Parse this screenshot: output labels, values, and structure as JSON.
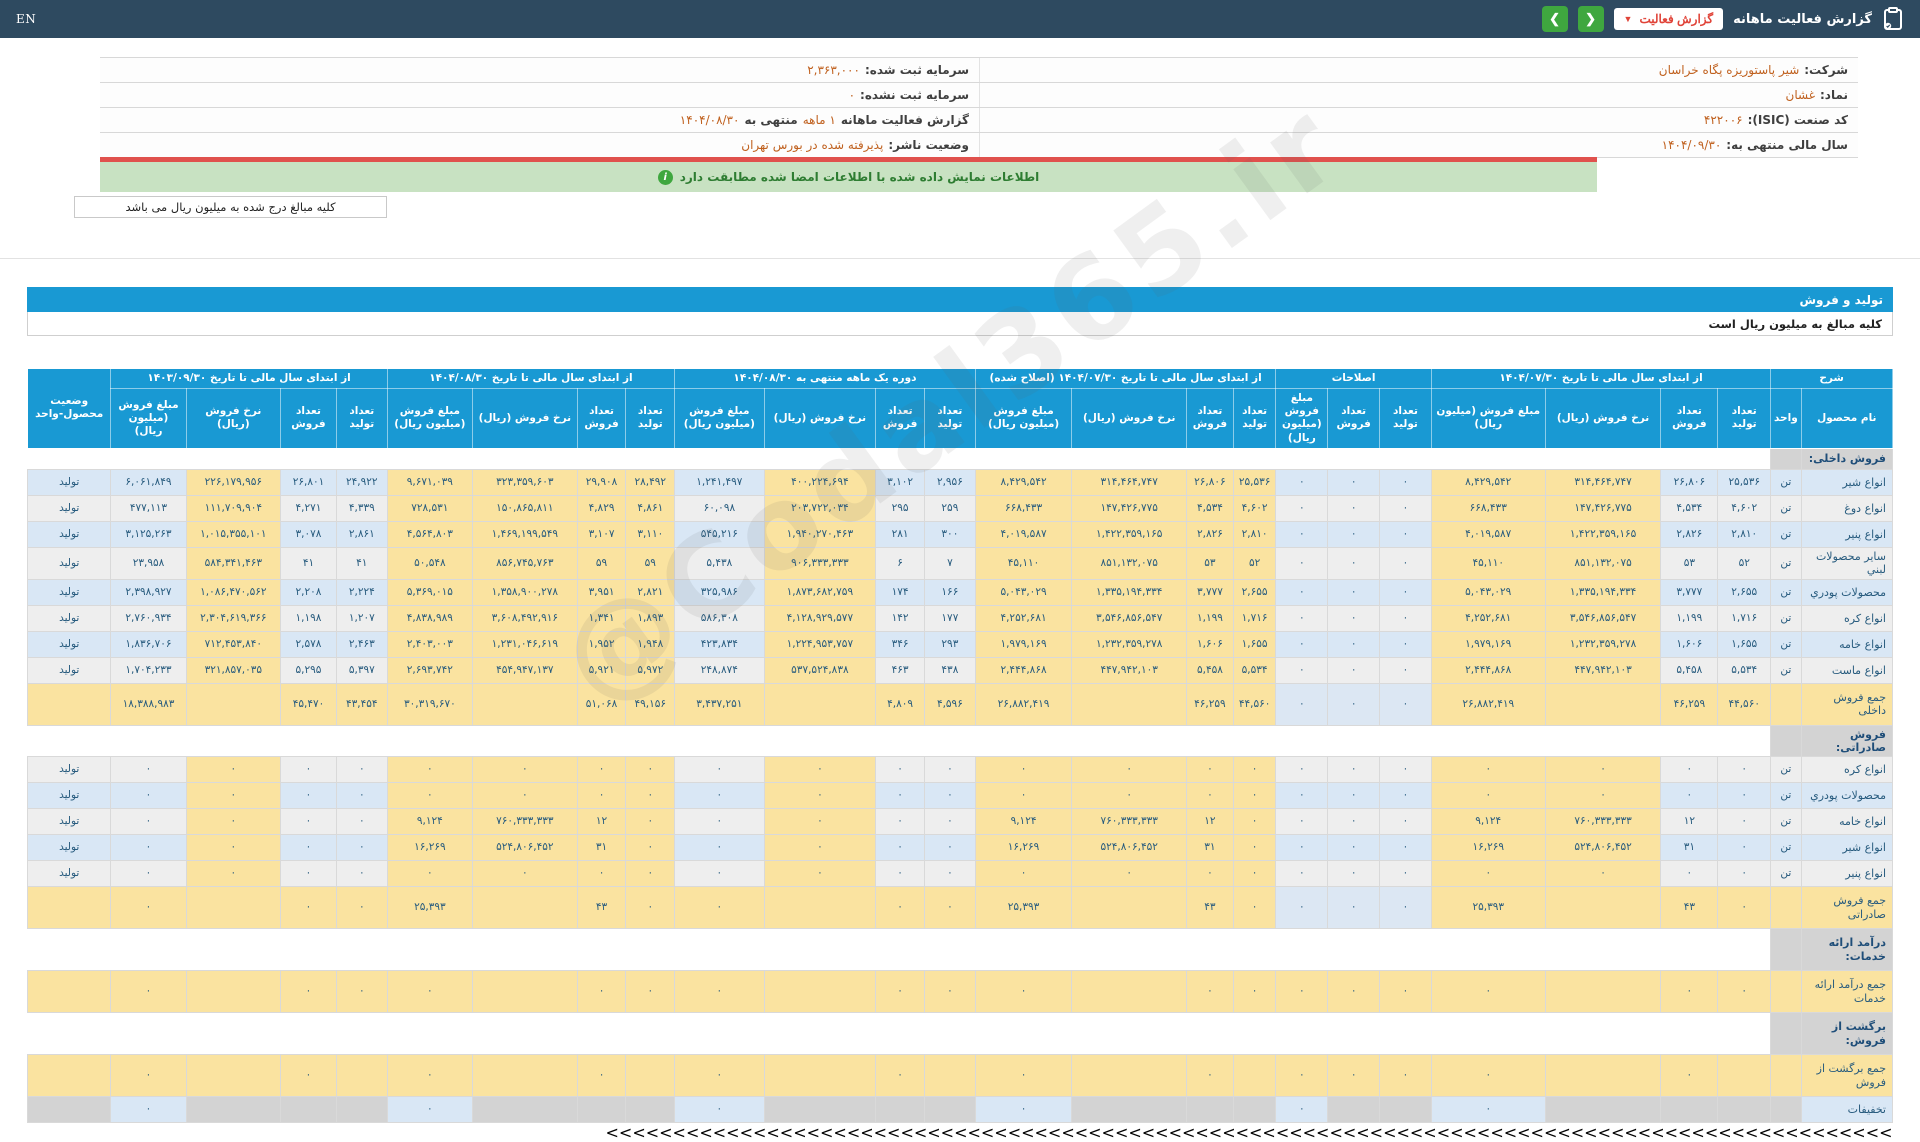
{
  "topbar": {
    "en": "EN",
    "title": "گزارش فعالیت ماهانه",
    "dropdown_label": "گزارش فعالیت",
    "icons": [
      "clipboard-icon",
      "chevron-down-icon",
      "chevron-right-icon",
      "chevron-left-icon"
    ]
  },
  "info": {
    "rows": [
      {
        "right_label": "شرکت:",
        "right_value": "شیر پاستوریزه پگاه خراسان",
        "left_parts": [
          {
            "t": "l",
            "v": "سرمایه ثبت شده:"
          },
          {
            "t": "v",
            "v": "۲,۳۶۳,۰۰۰"
          }
        ]
      },
      {
        "right_label": "نماد:",
        "right_value": "غشان",
        "left_parts": [
          {
            "t": "l",
            "v": "سرمایه ثبت نشده:"
          },
          {
            "t": "v",
            "v": "۰"
          }
        ]
      },
      {
        "right_label": "کد صنعت (ISIC):",
        "right_value": "۴۲۲۰۰۶",
        "left_parts": [
          {
            "t": "l",
            "v": "گزارش فعالیت ماهانه"
          },
          {
            "t": "v",
            "v": "۱ ماهه"
          },
          {
            "t": "l",
            "v": "منتهی به"
          },
          {
            "t": "v",
            "v": "۱۴۰۴/۰۸/۳۰"
          }
        ]
      },
      {
        "right_label": "سال مالی منتهی به:",
        "right_value": "۱۴۰۴/۰۹/۳۰",
        "left_parts": [
          {
            "t": "l",
            "v": "وضعیت ناشر:"
          },
          {
            "t": "v",
            "v": "پذیرفته شده در بورس تهران"
          }
        ]
      }
    ]
  },
  "notice": "اطلاعات نمایش داده شده با اطلاعات امضا شده مطابقت دارد",
  "units_note": "کلیه مبالغ درج شده به میلیون ریال می باشد",
  "section_bar": "تولید و فروش",
  "table_note": "کلیه مبالغ به میلیون ریال است",
  "watermark": "@Codal365.ir",
  "colors": {
    "accent_blue": "#1999d3",
    "highlight_yellow": "#fae3a0",
    "row_blue": "#d9e7f5",
    "row_gray": "#eeeeee",
    "section_gray": "#d3d3d3",
    "topbar": "#2e4a60",
    "green_button": "#3fa73f",
    "red": "#e04338",
    "notice_green": "#c8e2c2",
    "value_orange": "#c0611f"
  },
  "table": {
    "desc_header": "شرح",
    "name_header": "نام محصول",
    "unit_header": "واحد",
    "status_header": "وضعیت محصول-واحد",
    "groups": [
      {
        "label": "از ابتدای سال مالی تا تاریخ ۱۴۰۴/۰۷/۳۰",
        "cols": [
          "تعداد تولید",
          "تعداد فروش",
          "نرخ فروش (ریال)",
          "مبلغ فروش (میلیون ریال)"
        ]
      },
      {
        "label": "اصلاحات",
        "cols": [
          "تعداد تولید",
          "تعداد فروش",
          "مبلغ فروش (میلیون ریال)"
        ]
      },
      {
        "label": "از ابتدای سال مالی تا تاریخ ۱۴۰۴/۰۷/۳۰ (اصلاح شده)",
        "cols": [
          "تعداد تولید",
          "تعداد فروش",
          "نرخ فروش (ریال)",
          "مبلغ فروش (میلیون ریال)"
        ]
      },
      {
        "label": "دوره یک ماهه منتهی به ۱۴۰۴/۰۸/۳۰",
        "cols": [
          "تعداد تولید",
          "تعداد فروش",
          "نرخ فروش (ریال)",
          "مبلغ فروش (میلیون ریال)"
        ]
      },
      {
        "label": "از ابتدای سال مالی تا تاریخ ۱۴۰۴/۰۸/۳۰",
        "cols": [
          "تعداد تولید",
          "تعداد فروش",
          "نرخ فروش (ریال)",
          "مبلغ فروش (میلیون ریال)"
        ]
      },
      {
        "label": "از ابتدای سال مالی تا تاریخ ۱۴۰۳/۰۹/۳۰",
        "cols": [
          "تعداد تولید",
          "تعداد فروش",
          "نرخ فروش (ریال)",
          "مبلغ فروش (میلیون ریال)"
        ]
      }
    ],
    "rows": [
      {
        "type": "section",
        "name": "فروش داخلی:"
      },
      {
        "type": "product",
        "name": "انواع شیر",
        "unit": "تن",
        "status": "تولید",
        "tint": "blue",
        "cells": [
          "۲۵,۵۳۶",
          "۲۶,۸۰۶",
          "۳۱۴,۴۶۴,۷۴۷",
          "۸,۴۲۹,۵۴۲",
          "۰",
          "۰",
          "۰",
          "۲۵,۵۳۶",
          "۲۶,۸۰۶",
          "۳۱۴,۴۶۴,۷۴۷",
          "۸,۴۲۹,۵۴۲",
          "۲,۹۵۶",
          "۳,۱۰۲",
          "۴۰۰,۲۲۴,۶۹۴",
          "۱,۲۴۱,۴۹۷",
          "۲۸,۴۹۲",
          "۲۹,۹۰۸",
          "۳۲۳,۳۵۹,۶۰۳",
          "۹,۶۷۱,۰۳۹",
          "۲۴,۹۲۲",
          "۲۶,۸۰۱",
          "۲۲۶,۱۷۹,۹۵۶",
          "۶,۰۶۱,۸۴۹"
        ]
      },
      {
        "type": "product",
        "name": "انواع دوغ",
        "unit": "تن",
        "status": "تولید",
        "tint": "gray",
        "cells": [
          "۴,۶۰۲",
          "۴,۵۳۴",
          "۱۴۷,۴۲۶,۷۷۵",
          "۶۶۸,۴۳۳",
          "۰",
          "۰",
          "۰",
          "۴,۶۰۲",
          "۴,۵۳۴",
          "۱۴۷,۴۲۶,۷۷۵",
          "۶۶۸,۴۳۳",
          "۲۵۹",
          "۲۹۵",
          "۲۰۳,۷۲۲,۰۳۴",
          "۶۰,۰۹۸",
          "۴,۸۶۱",
          "۴,۸۲۹",
          "۱۵۰,۸۶۵,۸۱۱",
          "۷۲۸,۵۳۱",
          "۴,۳۳۹",
          "۴,۲۷۱",
          "۱۱۱,۷۰۹,۹۰۴",
          "۴۷۷,۱۱۳"
        ]
      },
      {
        "type": "product",
        "name": "انواع پنیر",
        "unit": "تن",
        "status": "تولید",
        "tint": "blue",
        "cells": [
          "۲,۸۱۰",
          "۲,۸۲۶",
          "۱,۴۲۲,۳۵۹,۱۶۵",
          "۴,۰۱۹,۵۸۷",
          "۰",
          "۰",
          "۰",
          "۲,۸۱۰",
          "۲,۸۲۶",
          "۱,۴۲۲,۳۵۹,۱۶۵",
          "۴,۰۱۹,۵۸۷",
          "۳۰۰",
          "۲۸۱",
          "۱,۹۴۰,۲۷۰,۴۶۳",
          "۵۴۵,۲۱۶",
          "۳,۱۱۰",
          "۳,۱۰۷",
          "۱,۴۶۹,۱۹۹,۵۴۹",
          "۴,۵۶۴,۸۰۳",
          "۲,۸۶۱",
          "۳,۰۷۸",
          "۱,۰۱۵,۳۵۵,۱۰۱",
          "۳,۱۲۵,۲۶۳"
        ]
      },
      {
        "type": "product",
        "name": "سایر محصولات لبني",
        "unit": "تن",
        "status": "تولید",
        "tint": "gray",
        "tall": true,
        "cells": [
          "۵۲",
          "۵۳",
          "۸۵۱,۱۳۲,۰۷۵",
          "۴۵,۱۱۰",
          "۰",
          "۰",
          "۰",
          "۵۲",
          "۵۳",
          "۸۵۱,۱۳۲,۰۷۵",
          "۴۵,۱۱۰",
          "۷",
          "۶",
          "۹۰۶,۳۳۳,۳۳۳",
          "۵,۴۳۸",
          "۵۹",
          "۵۹",
          "۸۵۶,۷۴۵,۷۶۳",
          "۵۰,۵۴۸",
          "۴۱",
          "۴۱",
          "۵۸۴,۳۴۱,۴۶۳",
          "۲۳,۹۵۸"
        ]
      },
      {
        "type": "product",
        "name": "محصولات پودري",
        "unit": "تن",
        "status": "تولید",
        "tint": "blue",
        "cells": [
          "۲,۶۵۵",
          "۳,۷۷۷",
          "۱,۳۳۵,۱۹۴,۳۳۴",
          "۵,۰۴۳,۰۲۹",
          "۰",
          "۰",
          "۰",
          "۲,۶۵۵",
          "۳,۷۷۷",
          "۱,۳۳۵,۱۹۴,۳۳۴",
          "۵,۰۴۳,۰۲۹",
          "۱۶۶",
          "۱۷۴",
          "۱,۸۷۳,۶۸۲,۷۵۹",
          "۳۲۵,۹۸۶",
          "۲,۸۲۱",
          "۳,۹۵۱",
          "۱,۳۵۸,۹۰۰,۲۷۸",
          "۵,۳۶۹,۰۱۵",
          "۲,۲۲۴",
          "۲,۲۰۸",
          "۱,۰۸۶,۴۷۰,۵۶۲",
          "۲,۳۹۸,۹۲۷"
        ]
      },
      {
        "type": "product",
        "name": "انواع کره",
        "unit": "تن",
        "status": "تولید",
        "tint": "gray",
        "cells": [
          "۱,۷۱۶",
          "۱,۱۹۹",
          "۳,۵۴۶,۸۵۶,۵۴۷",
          "۴,۲۵۲,۶۸۱",
          "۰",
          "۰",
          "۰",
          "۱,۷۱۶",
          "۱,۱۹۹",
          "۳,۵۴۶,۸۵۶,۵۴۷",
          "۴,۲۵۲,۶۸۱",
          "۱۷۷",
          "۱۴۲",
          "۴,۱۲۸,۹۲۹,۵۷۷",
          "۵۸۶,۳۰۸",
          "۱,۸۹۳",
          "۱,۳۴۱",
          "۳,۶۰۸,۴۹۲,۹۱۶",
          "۴,۸۳۸,۹۸۹",
          "۱,۲۰۷",
          "۱,۱۹۸",
          "۲,۳۰۴,۶۱۹,۳۶۶",
          "۲,۷۶۰,۹۳۴"
        ]
      },
      {
        "type": "product",
        "name": "انواع خامه",
        "unit": "تن",
        "status": "تولید",
        "tint": "blue",
        "cells": [
          "۱,۶۵۵",
          "۱,۶۰۶",
          "۱,۲۳۲,۳۵۹,۲۷۸",
          "۱,۹۷۹,۱۶۹",
          "۰",
          "۰",
          "۰",
          "۱,۶۵۵",
          "۱,۶۰۶",
          "۱,۲۳۲,۳۵۹,۲۷۸",
          "۱,۹۷۹,۱۶۹",
          "۲۹۳",
          "۳۴۶",
          "۱,۲۲۴,۹۵۳,۷۵۷",
          "۴۲۳,۸۳۴",
          "۱,۹۴۸",
          "۱,۹۵۲",
          "۱,۲۳۱,۰۴۶,۶۱۹",
          "۲,۴۰۳,۰۰۳",
          "۲,۴۶۳",
          "۲,۵۷۸",
          "۷۱۲,۴۵۳,۸۴۰",
          "۱,۸۳۶,۷۰۶"
        ]
      },
      {
        "type": "product",
        "name": "انواع ماست",
        "unit": "تن",
        "status": "تولید",
        "tint": "gray",
        "cells": [
          "۵,۵۳۴",
          "۵,۴۵۸",
          "۴۴۷,۹۴۲,۱۰۳",
          "۲,۴۴۴,۸۶۸",
          "۰",
          "۰",
          "۰",
          "۵,۵۳۴",
          "۵,۴۵۸",
          "۴۴۷,۹۴۲,۱۰۳",
          "۲,۴۴۴,۸۶۸",
          "۴۳۸",
          "۴۶۳",
          "۵۳۷,۵۲۴,۸۳۸",
          "۲۴۸,۸۷۴",
          "۵,۹۷۲",
          "۵,۹۲۱",
          "۴۵۴,۹۴۷,۱۳۷",
          "۲,۶۹۳,۷۴۲",
          "۵,۳۹۷",
          "۵,۲۹۵",
          "۳۲۱,۸۵۷,۰۳۵",
          "۱,۷۰۴,۲۳۳"
        ]
      },
      {
        "type": "total",
        "name": "جمع فروش داخلی",
        "unit": "",
        "status": "",
        "ed_blue": true,
        "cells": [
          "۴۴,۵۶۰",
          "۴۶,۲۵۹",
          "",
          "۲۶,۸۸۲,۴۱۹",
          "۰",
          "۰",
          "۰",
          "۴۴,۵۶۰",
          "۴۶,۲۵۹",
          "",
          "۲۶,۸۸۲,۴۱۹",
          "۴,۵۹۶",
          "۴,۸۰۹",
          "",
          "۳,۴۳۷,۲۵۱",
          "۴۹,۱۵۶",
          "۵۱,۰۶۸",
          "",
          "۳۰,۳۱۹,۶۷۰",
          "۴۳,۴۵۴",
          "۴۵,۴۷۰",
          "",
          "۱۸,۳۸۸,۹۸۳"
        ]
      },
      {
        "type": "section",
        "name": "فروش صادراتی:"
      },
      {
        "type": "product",
        "name": "انواع کره",
        "unit": "تن",
        "status": "تولید",
        "tint": "gray",
        "cells": [
          "۰",
          "۰",
          "۰",
          "۰",
          "۰",
          "۰",
          "۰",
          "۰",
          "۰",
          "۰",
          "۰",
          "۰",
          "۰",
          "۰",
          "۰",
          "۰",
          "۰",
          "۰",
          "۰",
          "۰",
          "۰",
          "۰",
          "۰"
        ]
      },
      {
        "type": "product",
        "name": "محصولات پودري",
        "unit": "تن",
        "status": "تولید",
        "tint": "blue",
        "cells": [
          "۰",
          "۰",
          "۰",
          "۰",
          "۰",
          "۰",
          "۰",
          "۰",
          "۰",
          "۰",
          "۰",
          "۰",
          "۰",
          "۰",
          "۰",
          "۰",
          "۰",
          "۰",
          "۰",
          "۰",
          "۰",
          "۰",
          "۰"
        ]
      },
      {
        "type": "product",
        "name": "انواع خامه",
        "unit": "تن",
        "status": "تولید",
        "tint": "gray",
        "cells": [
          "۰",
          "۱۲",
          "۷۶۰,۳۳۳,۳۳۳",
          "۹,۱۲۴",
          "۰",
          "۰",
          "۰",
          "۰",
          "۱۲",
          "۷۶۰,۳۳۳,۳۳۳",
          "۹,۱۲۴",
          "۰",
          "۰",
          "۰",
          "۰",
          "۰",
          "۱۲",
          "۷۶۰,۳۳۳,۳۳۳",
          "۹,۱۲۴",
          "۰",
          "۰",
          "۰",
          "۰"
        ]
      },
      {
        "type": "product",
        "name": "انواع شیر",
        "unit": "تن",
        "status": "تولید",
        "tint": "blue",
        "cells": [
          "۰",
          "۳۱",
          "۵۲۴,۸۰۶,۴۵۲",
          "۱۶,۲۶۹",
          "۰",
          "۰",
          "۰",
          "۰",
          "۳۱",
          "۵۲۴,۸۰۶,۴۵۲",
          "۱۶,۲۶۹",
          "۰",
          "۰",
          "۰",
          "۰",
          "۰",
          "۳۱",
          "۵۲۴,۸۰۶,۴۵۲",
          "۱۶,۲۶۹",
          "۰",
          "۰",
          "۰",
          "۰"
        ]
      },
      {
        "type": "product",
        "name": "انواع پنیر",
        "unit": "تن",
        "status": "تولید",
        "tint": "gray",
        "cells": [
          "۰",
          "۰",
          "۰",
          "۰",
          "۰",
          "۰",
          "۰",
          "۰",
          "۰",
          "۰",
          "۰",
          "۰",
          "۰",
          "۰",
          "۰",
          "۰",
          "۰",
          "۰",
          "۰",
          "۰",
          "۰",
          "۰",
          "۰"
        ]
      },
      {
        "type": "total",
        "name": "جمع فروش صادراتی",
        "unit": "",
        "status": "",
        "ed_blue": true,
        "cells": [
          "۰",
          "۴۳",
          "",
          "۲۵,۳۹۳",
          "۰",
          "۰",
          "۰",
          "۰",
          "۴۳",
          "",
          "۲۵,۳۹۳",
          "۰",
          "۰",
          "",
          "۰",
          "۰",
          "۴۳",
          "",
          "۲۵,۳۹۳",
          "۰",
          "۰",
          "",
          "۰"
        ]
      },
      {
        "type": "section",
        "name": "درآمد ارائه خدمات:",
        "tall": true
      },
      {
        "type": "total",
        "name": "جمع درآمد ارائه خدمات",
        "unit": "",
        "status": "",
        "ed_blue": false,
        "cells": [
          "۰",
          "۰",
          "",
          "۰",
          "۰",
          "۰",
          "۰",
          "۰",
          "۰",
          "",
          "۰",
          "۰",
          "۰",
          "",
          "۰",
          "۰",
          "۰",
          "",
          "۰",
          "۰",
          "۰",
          "",
          "۰"
        ]
      },
      {
        "type": "section",
        "name": "برگشت از فروش:",
        "tall": true
      },
      {
        "type": "total",
        "name": "جمع برگشت از فروش",
        "unit": "",
        "status": "",
        "ed_blue": false,
        "cells": [
          "",
          "۰",
          "",
          "۰",
          "۰",
          "۰",
          "۰",
          "",
          "۰",
          "",
          "۰",
          "",
          "۰",
          "",
          "۰",
          "",
          "۰",
          "",
          "۰",
          "",
          "۰",
          "",
          "۰"
        ]
      },
      {
        "type": "discount",
        "name": "تخفیفات",
        "unit": "",
        "status": "",
        "cells": [
          "",
          "",
          "",
          "۰",
          "",
          "",
          "۰",
          "",
          "",
          "",
          "۰",
          "",
          "",
          "",
          "۰",
          "",
          "",
          "",
          "۰",
          "",
          "",
          "",
          "۰"
        ]
      }
    ]
  }
}
